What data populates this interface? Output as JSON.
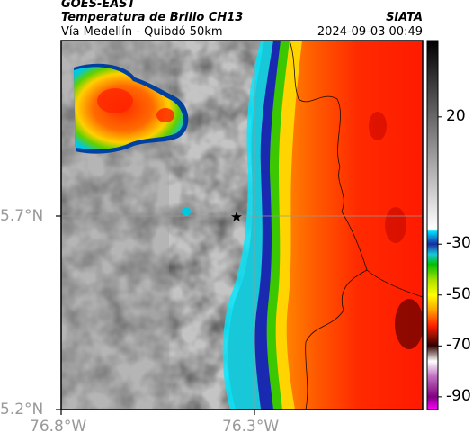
{
  "header": {
    "agency": "GOES-EAST",
    "product": "Temperatura de Brillo CH13",
    "location": "Vía Medellín - Quibdó 50km",
    "brand": "SIATA",
    "datetime": "2024-09-03 00:49"
  },
  "map": {
    "lat_labels": [
      "5.7°N",
      "5.2°N"
    ],
    "lon_labels": [
      "76.8°W",
      "76.3°W"
    ],
    "marker_icon": "star-icon",
    "gridline_color": "#9a9a9a"
  },
  "colorbar": {
    "ticks": [
      "20",
      "-30",
      "-50",
      "-70",
      "-90"
    ],
    "range_top": 50,
    "range_bottom": -95,
    "stops": [
      {
        "value": 50,
        "color": "#000000"
      },
      {
        "value": -24,
        "color": "#ffffff"
      },
      {
        "value": -25,
        "color": "#00e0ff"
      },
      {
        "value": -30,
        "color": "#1a2aa0"
      },
      {
        "value": -34,
        "color": "#18c8d8"
      },
      {
        "value": -38,
        "color": "#00c000"
      },
      {
        "value": -44,
        "color": "#a8e000"
      },
      {
        "value": -50,
        "color": "#ffff00"
      },
      {
        "value": -56,
        "color": "#ffa000"
      },
      {
        "value": -62,
        "color": "#ff2000"
      },
      {
        "value": -70,
        "color": "#300000"
      },
      {
        "value": -76,
        "color": "#ffffff"
      },
      {
        "value": -82,
        "color": "#c070c0"
      },
      {
        "value": -90,
        "color": "#800080"
      },
      {
        "value": -95,
        "color": "#ff00ff"
      }
    ]
  }
}
